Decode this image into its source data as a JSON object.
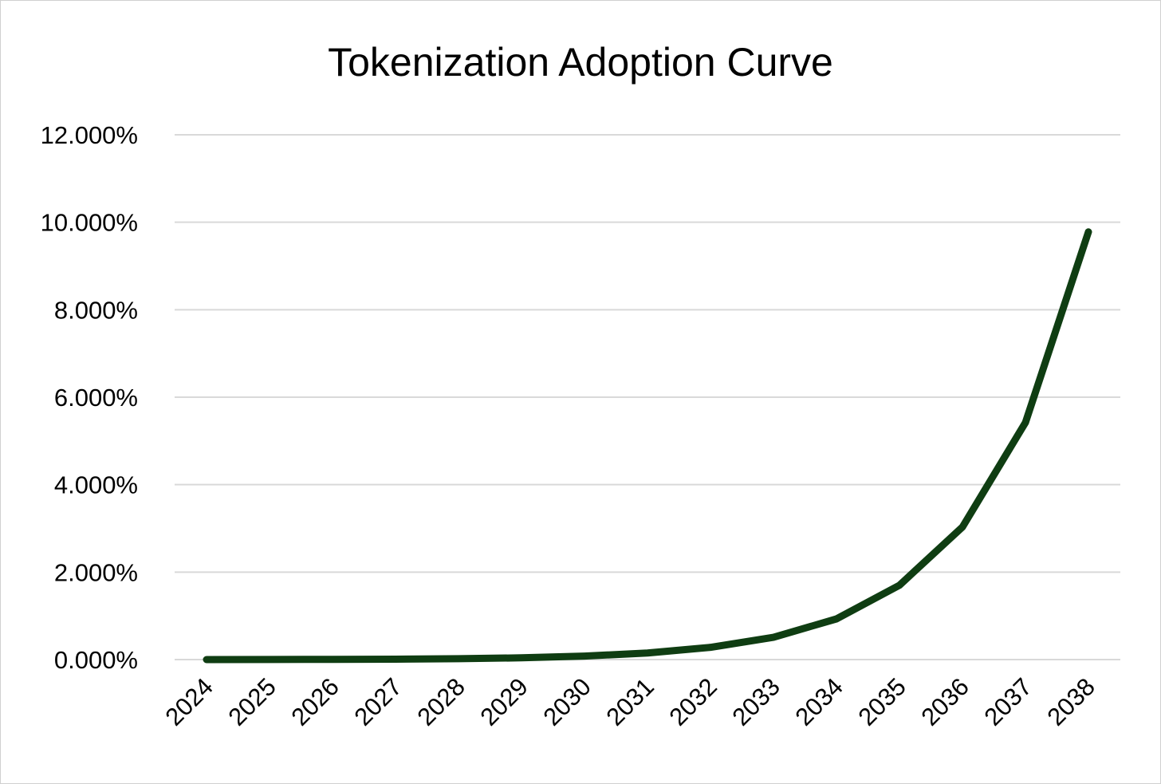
{
  "chart_data": {
    "type": "line",
    "title": "Tokenization Adoption Curve",
    "xlabel": "",
    "ylabel": "",
    "categories": [
      "2024",
      "2025",
      "2026",
      "2027",
      "2028",
      "2029",
      "2030",
      "2031",
      "2032",
      "2033",
      "2034",
      "2035",
      "2036",
      "2037",
      "2038"
    ],
    "series": [
      {
        "values": [
          0.0,
          0.002,
          0.005,
          0.01,
          0.02,
          0.04,
          0.08,
          0.15,
          0.28,
          0.51,
          0.93,
          1.7,
          3.03,
          5.42,
          9.78
        ],
        "color": "#0f3d12"
      }
    ],
    "ylim": [
      0,
      12
    ],
    "yticks": [
      0,
      2,
      4,
      6,
      8,
      10,
      12
    ],
    "ytick_labels": [
      "0.000%",
      "2.000%",
      "4.000%",
      "6.000%",
      "8.000%",
      "10.000%",
      "12.000%"
    ],
    "grid": true,
    "legend": "none"
  }
}
